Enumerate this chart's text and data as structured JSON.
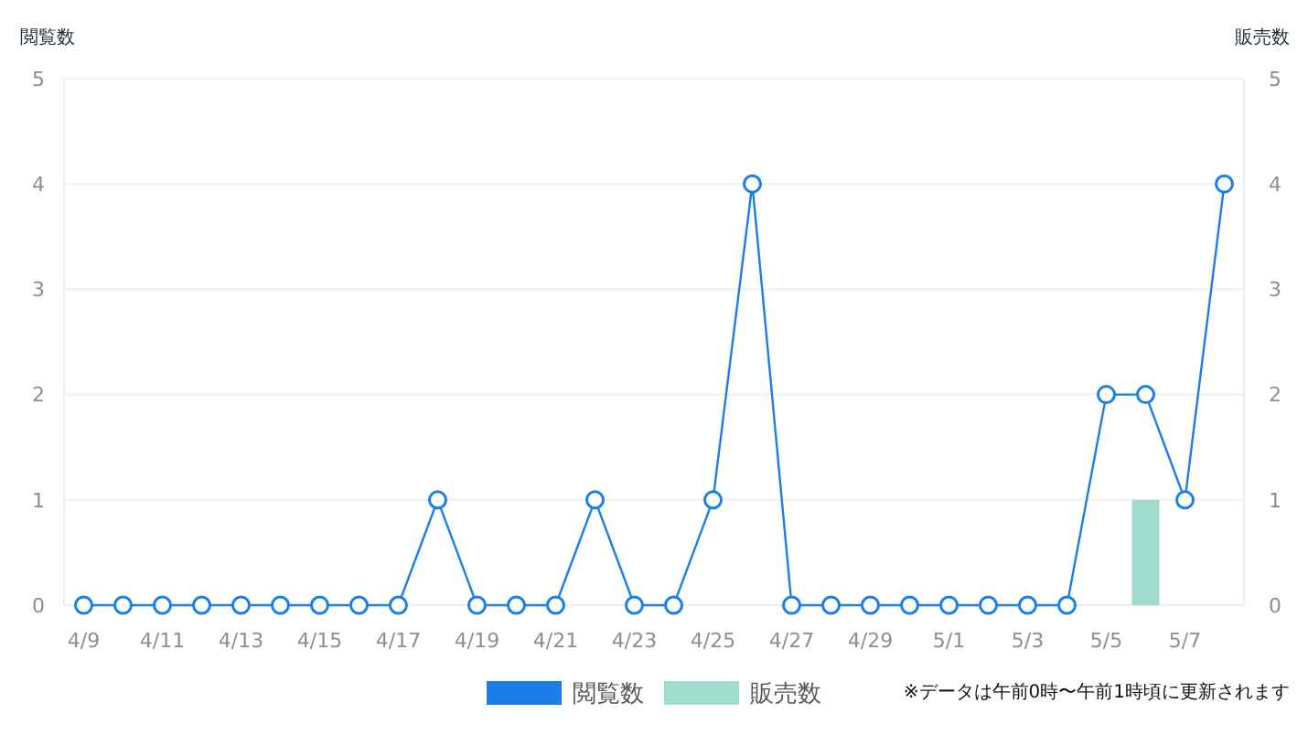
{
  "chart_data": {
    "type": "line",
    "ylabel": "閲覧数",
    "y2label": "販売数",
    "categories": [
      "4/9",
      null,
      "4/11",
      null,
      "4/13",
      null,
      "4/15",
      null,
      "4/17",
      null,
      "4/19",
      null,
      "4/21",
      null,
      "4/23",
      null,
      "4/25",
      null,
      "4/27",
      null,
      "4/29",
      null,
      "5/1",
      null,
      "5/3",
      null,
      "5/5",
      null,
      "5/7",
      null
    ],
    "series": [
      {
        "name": "閲覧数",
        "color": "#1a7fe8",
        "values": [
          0,
          0,
          0,
          0,
          0,
          0,
          0,
          0,
          0,
          1,
          0,
          0,
          0,
          1,
          0,
          0,
          1,
          4,
          0,
          0,
          0,
          0,
          0,
          0,
          0,
          0,
          2,
          2,
          1,
          4
        ]
      },
      {
        "name": "販売数",
        "type": "bar",
        "axis": "y2",
        "color": "#9fdccd",
        "values": [
          null,
          null,
          null,
          null,
          null,
          null,
          null,
          null,
          null,
          null,
          null,
          null,
          null,
          null,
          null,
          null,
          null,
          null,
          null,
          null,
          null,
          null,
          null,
          null,
          null,
          null,
          null,
          1,
          null,
          null
        ]
      }
    ],
    "ylim": [
      0,
      5
    ],
    "yticks": [
      0,
      1,
      2,
      3,
      4,
      5
    ],
    "y2lim": [
      0,
      5
    ],
    "y2ticks": [
      0,
      1,
      2,
      3,
      4,
      5
    ],
    "grid": "y",
    "legend": "bottom",
    "marker": "circle",
    "line_style": "solid",
    "annotations": [
      "※データは午前0時〜午前1時頃に更新されます"
    ]
  }
}
